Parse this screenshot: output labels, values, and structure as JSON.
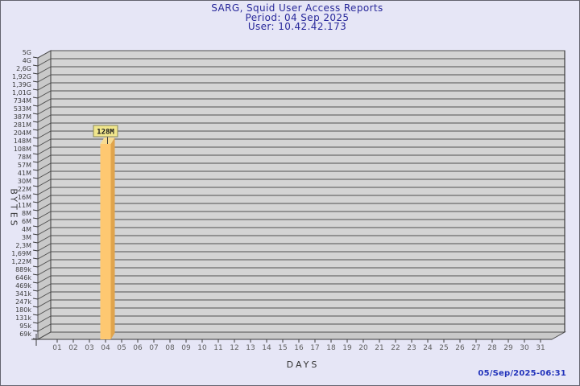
{
  "window": {
    "background_color": "#e6e6f6",
    "border_color": "#63636f"
  },
  "header": {
    "title": "SARG, Squid User Access Reports",
    "period_line": "Period: 04 Sep 2025",
    "user_line": "User: 10.42.42.173",
    "text_color": "#28289a"
  },
  "footer": {
    "timestamp": "05/Sep/2025-06:31",
    "text_color": "#2233bb"
  },
  "chart_data": {
    "type": "bar",
    "title": "SARG, Squid User Access Reports",
    "subtitle": [
      "Period: 04 Sep 2025",
      "User: 10.42.42.173"
    ],
    "xlabel": "DAYS",
    "ylabel": "BYTES",
    "y_scale": "log",
    "grid": true,
    "style": "3d-extruded",
    "y_tick_labels": [
      "5G",
      "4G",
      "2,6G",
      "1,92G",
      "1,39G",
      "1,01G",
      "734M",
      "533M",
      "387M",
      "281M",
      "204M",
      "148M",
      "108M",
      "78M",
      "57M",
      "41M",
      "30M",
      "22M",
      "16M",
      "11M",
      "8M",
      "6M",
      "4M",
      "3M",
      "2,3M",
      "1,69M",
      "1,22M",
      "889k",
      "646k",
      "469k",
      "341k",
      "247k",
      "180k",
      "131k",
      "95k",
      "69k"
    ],
    "x_tick_labels": [
      "01",
      "02",
      "03",
      "04",
      "05",
      "06",
      "07",
      "08",
      "09",
      "10",
      "11",
      "12",
      "13",
      "14",
      "15",
      "16",
      "17",
      "18",
      "19",
      "20",
      "21",
      "22",
      "23",
      "24",
      "25",
      "26",
      "27",
      "28",
      "29",
      "30",
      "31"
    ],
    "bars": [
      {
        "x": "04",
        "value": "128M",
        "value_label": "128M"
      }
    ],
    "colors": {
      "plot_background": "#d4d4d4",
      "wall_fill": "#c9c9c9",
      "gridline": "#4f4f4f",
      "axis": "#3a3a3a",
      "tick_label": "#3c3c3c",
      "x_tick_label": "#606060",
      "bar_front": "#fec871",
      "bar_side": "#e0a44c",
      "bar_top": "#f8db90",
      "value_box_fill": "#f0e68c",
      "value_box_border": "#87875a",
      "value_text": "#1a1a1a"
    }
  }
}
